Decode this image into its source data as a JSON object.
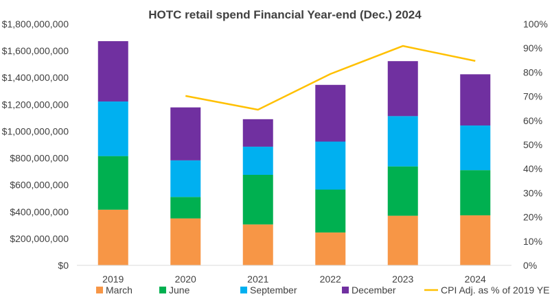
{
  "chart_data": {
    "type": "bar",
    "stacked": true,
    "title": "HOTC retail spend Financial Year-end (Dec.) 2024",
    "categories": [
      "2019",
      "2020",
      "2021",
      "2022",
      "2023",
      "2024"
    ],
    "series": [
      {
        "name": "March",
        "color": "#F79646",
        "values": [
          415000000,
          350000000,
          305000000,
          245000000,
          370000000,
          373000000
        ]
      },
      {
        "name": "June",
        "color": "#00B050",
        "values": [
          400000000,
          160000000,
          370000000,
          320000000,
          368000000,
          337000000
        ]
      },
      {
        "name": "September",
        "color": "#00B0F0",
        "values": [
          407000000,
          273000000,
          210000000,
          358000000,
          375000000,
          333000000
        ]
      },
      {
        "name": "December",
        "color": "#7030A0",
        "values": [
          450000000,
          395000000,
          205000000,
          423000000,
          410000000,
          382000000
        ]
      }
    ],
    "line_series": {
      "name": "CPI Adj. as % of 2019 YE",
      "color": "#FFC000",
      "axis": "right",
      "values": [
        null,
        70.2,
        64.5,
        79.3,
        90.9,
        84.7
      ]
    },
    "y_axis_left": {
      "min": 0,
      "max": 1800000000,
      "step": 200000000,
      "tick_labels": [
        "$0",
        "$200,000,000",
        "$400,000,000",
        "$600,000,000",
        "$800,000,000",
        "$1,000,000,000",
        "$1,200,000,000",
        "$1,400,000,000",
        "$1,600,000,000",
        "$1,800,000,000"
      ]
    },
    "y_axis_right": {
      "min": 0,
      "max": 100,
      "step": 10,
      "tick_labels": [
        "0%",
        "10%",
        "20%",
        "30%",
        "40%",
        "50%",
        "60%",
        "70%",
        "80%",
        "90%",
        "100%"
      ]
    },
    "grid": false,
    "legend_position": "bottom"
  }
}
